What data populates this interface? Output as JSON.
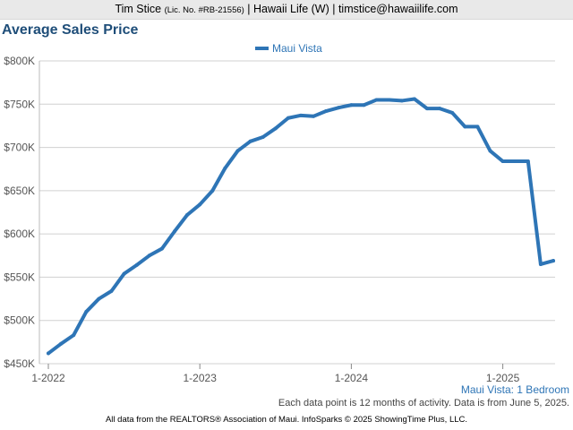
{
  "header": {
    "agent": "Tim Stice",
    "license": "(Lic. No. #RB-21556)",
    "rest": "| Hawaii Life (W) | timstice@hawaiilife.com"
  },
  "chart_data": {
    "type": "line",
    "title": "Average Sales Price",
    "legend_position": "top-center",
    "grid": true,
    "ylim": [
      450000,
      800000
    ],
    "y_ticks": [
      {
        "value": 450000,
        "label": "$450K"
      },
      {
        "value": 500000,
        "label": "$500K"
      },
      {
        "value": 550000,
        "label": "$550K"
      },
      {
        "value": 600000,
        "label": "$600K"
      },
      {
        "value": 650000,
        "label": "$650K"
      },
      {
        "value": 700000,
        "label": "$700K"
      },
      {
        "value": 750000,
        "label": "$750K"
      },
      {
        "value": 800000,
        "label": "$800K"
      }
    ],
    "x_ticks": [
      {
        "value": "2022-01",
        "label": "1-2022"
      },
      {
        "value": "2023-01",
        "label": "1-2023"
      },
      {
        "value": "2024-01",
        "label": "1-2024"
      },
      {
        "value": "2025-01",
        "label": "1-2025"
      }
    ],
    "x": [
      "2022-01",
      "2022-02",
      "2022-03",
      "2022-04",
      "2022-05",
      "2022-06",
      "2022-07",
      "2022-08",
      "2022-09",
      "2022-10",
      "2022-11",
      "2022-12",
      "2023-01",
      "2023-02",
      "2023-03",
      "2023-04",
      "2023-05",
      "2023-06",
      "2023-07",
      "2023-08",
      "2023-09",
      "2023-10",
      "2023-11",
      "2023-12",
      "2024-01",
      "2024-02",
      "2024-03",
      "2024-04",
      "2024-05",
      "2024-06",
      "2024-07",
      "2024-08",
      "2024-09",
      "2024-10",
      "2024-11",
      "2024-12",
      "2025-01",
      "2025-02",
      "2025-03",
      "2025-04",
      "2025-05"
    ],
    "series": [
      {
        "name": "Maui Vista",
        "color": "#2e75b6",
        "values": [
          462000,
          473000,
          483000,
          510000,
          525000,
          534000,
          554000,
          564000,
          575000,
          583000,
          603000,
          622000,
          634000,
          650000,
          676000,
          696000,
          707000,
          712000,
          722000,
          734000,
          737000,
          736000,
          742000,
          746000,
          749000,
          749000,
          755000,
          755000,
          754000,
          756000,
          745000,
          745000,
          740000,
          724000,
          724000,
          696000,
          684000,
          684000,
          684000,
          565000,
          569000
        ]
      }
    ]
  },
  "footer": {
    "series_label": "Maui Vista: 1 Bedroom",
    "note": "Each data point is 12 months of activity. Data is from June 5, 2025.",
    "credits": "All data from the REALTORS® Association of Maui. InfoSparks © 2025 ShowingTime Plus, LLC."
  }
}
